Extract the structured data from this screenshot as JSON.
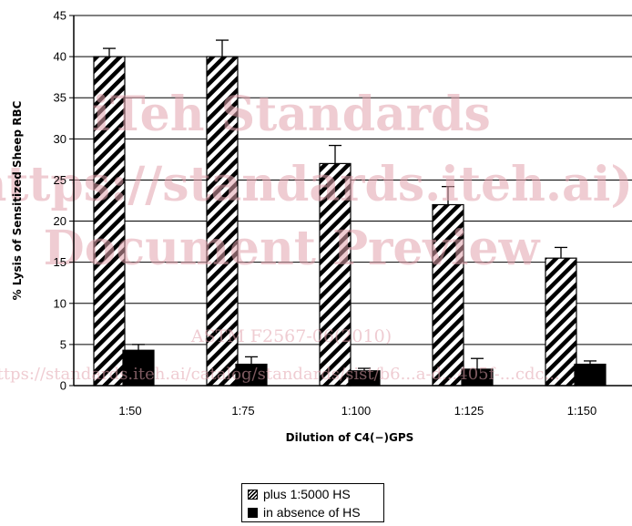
{
  "chart_data": {
    "type": "bar",
    "categories": [
      "1:50",
      "1:75",
      "1:100",
      "1:125",
      "1:150"
    ],
    "series": [
      {
        "name": "plus 1:5000 HS",
        "values": [
          40,
          40,
          27,
          22,
          15.5
        ],
        "errors": [
          1,
          2,
          2.2,
          2.2,
          1.3
        ],
        "pattern": "diagonal-hatch"
      },
      {
        "name": "in absence of HS",
        "values": [
          4.3,
          2.6,
          1.8,
          2,
          2.6
        ],
        "errors": [
          0.7,
          0.9,
          0.3,
          1.3,
          0.4
        ],
        "pattern": "solid"
      }
    ],
    "xlabel": "Dilution of C4(−)GPS",
    "ylabel": "% Lysis of Sensitized Sheep RBC",
    "ylim": [
      0,
      45
    ],
    "yticks": [
      0,
      5,
      10,
      15,
      20,
      25,
      30,
      35,
      40,
      45
    ],
    "grid": true,
    "legend_position": "bottom-center",
    "colors": {
      "bar_fill": "#000000",
      "hatch_bg": "#ffffff",
      "grid": "#000000"
    }
  },
  "watermark": {
    "lines": [
      "iTeh Standards",
      "(https://standards.iteh.ai)",
      "Document Preview"
    ],
    "small_lines": [
      "ASTM F2567-06(2010)",
      "https://standards.iteh.ai/catalog/standards/sist/b6...a-d...405f-...cdc..."
    ]
  }
}
